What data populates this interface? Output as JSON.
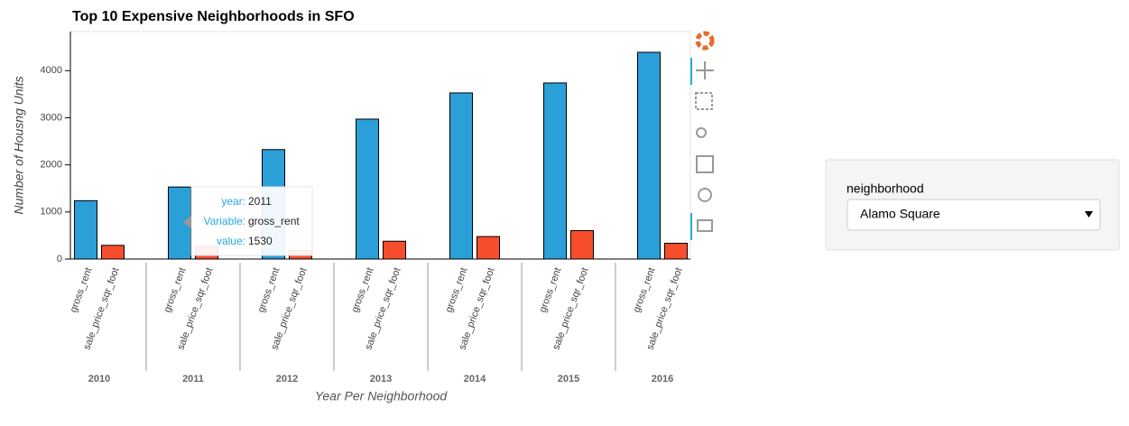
{
  "chart_data": {
    "type": "bar",
    "title": "Top 10 Expensive Neighborhoods in SFO",
    "x_label": "Year Per Neighborhood",
    "y_label": "Number of Housng Units",
    "categories": [
      "2010",
      "2011",
      "2012",
      "2013",
      "2014",
      "2015",
      "2016"
    ],
    "series": [
      {
        "name": "gross_rent",
        "color": "#2b9fd8",
        "values": [
          1239,
          1530,
          2324,
          2971,
          3528,
          3739,
          4390
        ]
      },
      {
        "name": "sale_price_sqr_foot",
        "color": "#f84d2d",
        "values": [
          291,
          272,
          183,
          378,
          477,
          603,
          335
        ]
      }
    ],
    "ylim": [
      0,
      4830
    ],
    "yticks": [
      0,
      1000,
      2000,
      3000,
      4000
    ],
    "grid": false,
    "tooltip": {
      "labels": [
        "year:",
        "Variable:",
        "value:"
      ]
    }
  },
  "widget": {
    "label": "neighborhood",
    "selected": "Alamo Square"
  }
}
